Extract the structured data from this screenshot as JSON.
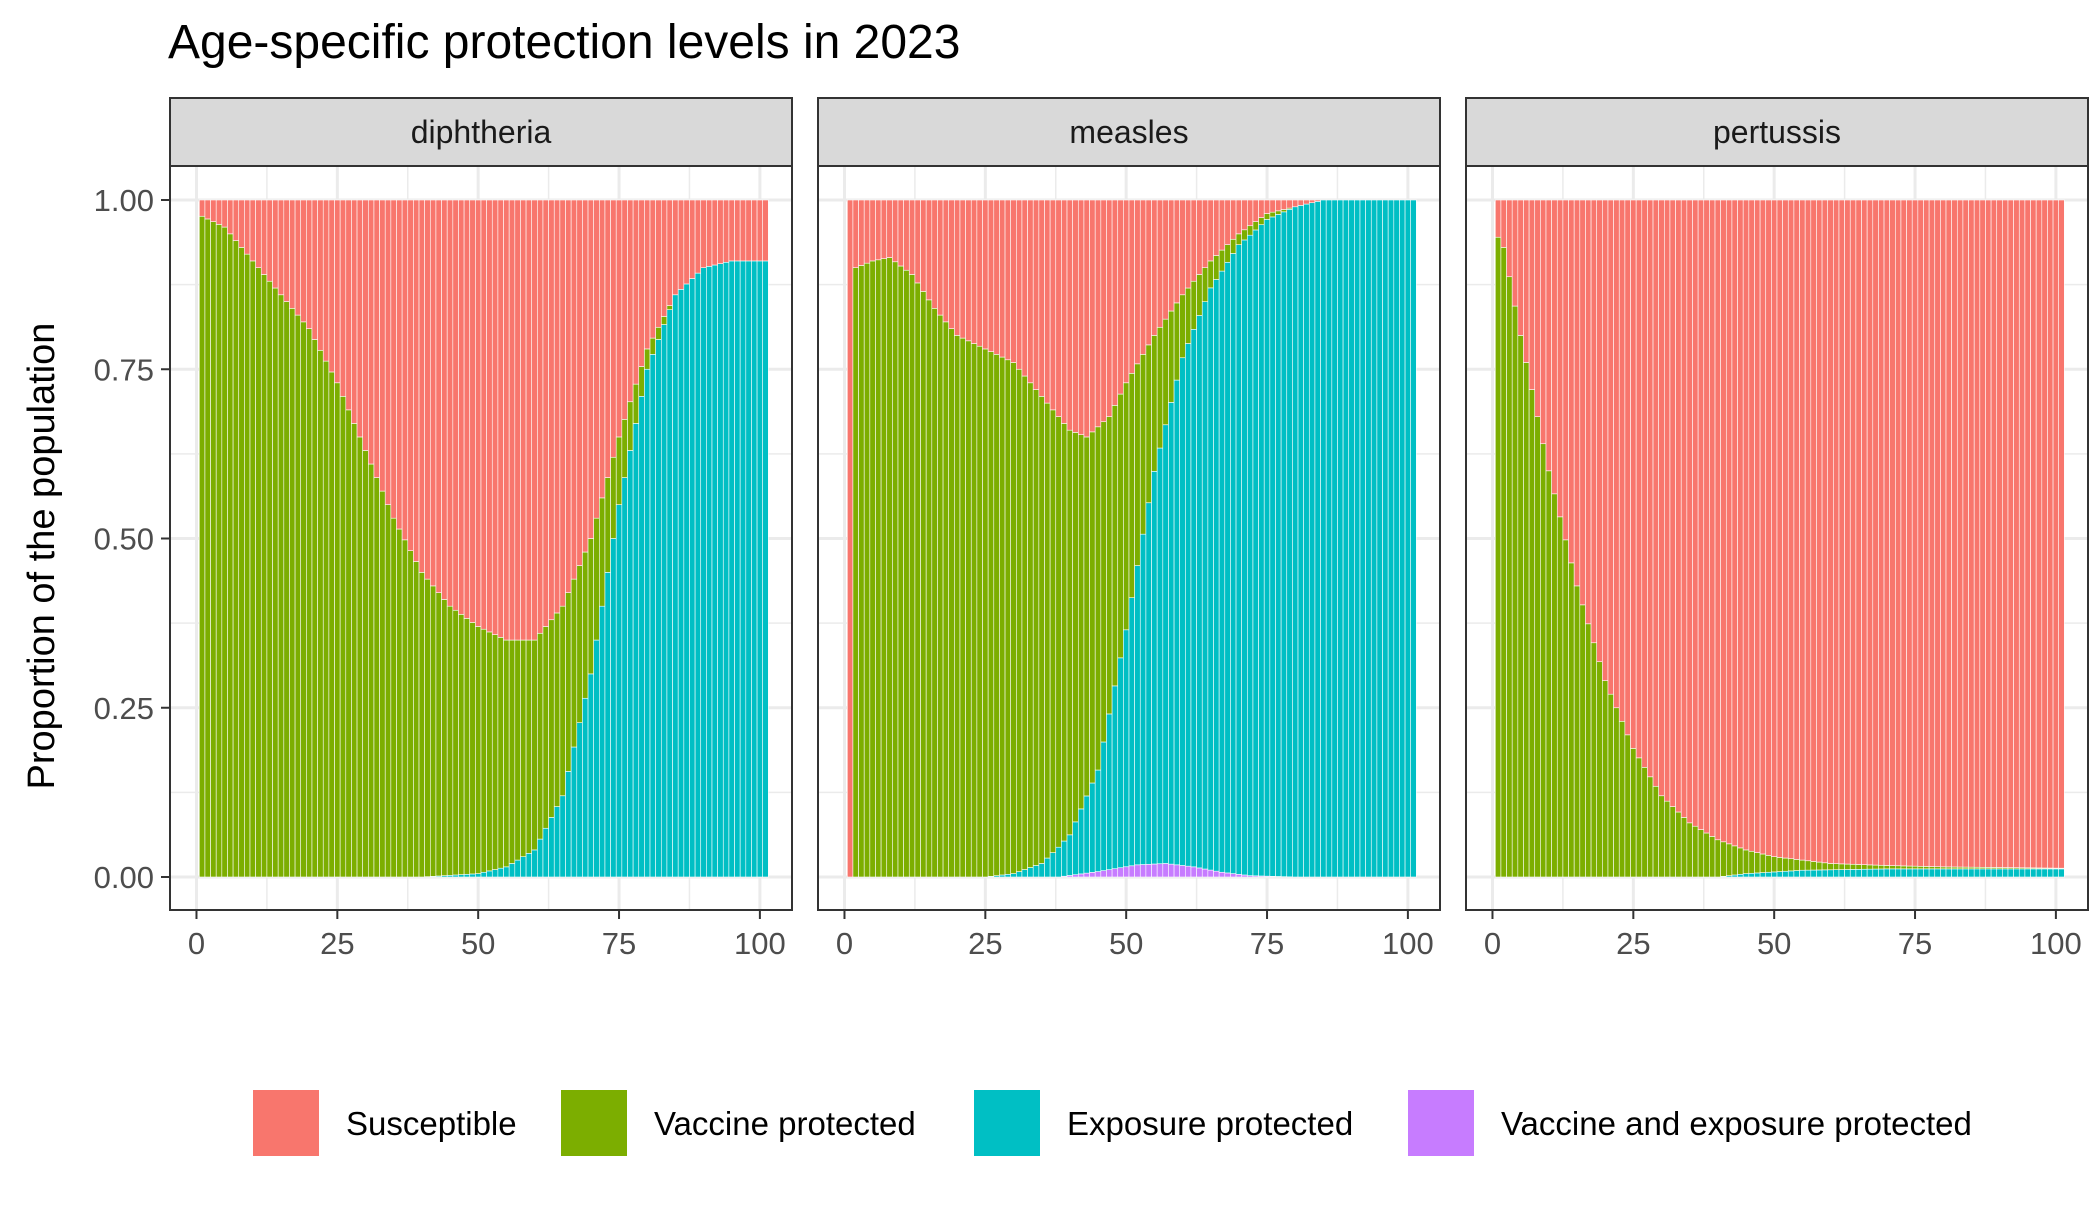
{
  "chart_data": {
    "type": "bar",
    "title": "Age-specific protection levels in 2023",
    "ylabel": "Proportion of the population",
    "xlabel": "",
    "ylim": [
      0,
      1
    ],
    "xlim": [
      0,
      101
    ],
    "x_ticks": [
      "0",
      "25",
      "50",
      "75",
      "100"
    ],
    "y_ticks": [
      "0.00",
      "0.25",
      "0.50",
      "0.75",
      "1.00"
    ],
    "legend_position": "bottom",
    "legend": [
      {
        "label": "Susceptible",
        "color": "#F8766D"
      },
      {
        "label": "Vaccine protected",
        "color": "#7CAE00"
      },
      {
        "label": "Exposure protected",
        "color": "#00BFC4"
      },
      {
        "label": "Vaccine and exposure protected",
        "color": "#C77CFF"
      }
    ],
    "stack_order": [
      "Susceptible",
      "Vaccine protected",
      "Exposure protected",
      "Vaccine and exposure protected"
    ],
    "ages": "1-101",
    "panels": [
      {
        "name": "diphtheria",
        "exposure": [
          [
            0,
            0
          ],
          [
            40,
            0
          ],
          [
            50,
            0.005
          ],
          [
            55,
            0.015
          ],
          [
            60,
            0.04
          ],
          [
            65,
            0.12
          ],
          [
            70,
            0.3
          ],
          [
            75,
            0.55
          ],
          [
            80,
            0.75
          ],
          [
            85,
            0.86
          ],
          [
            90,
            0.9
          ],
          [
            95,
            0.91
          ],
          [
            101,
            0.91
          ]
        ],
        "total_protected": [
          [
            0,
            0.98
          ],
          [
            5,
            0.96
          ],
          [
            10,
            0.91
          ],
          [
            15,
            0.86
          ],
          [
            20,
            0.81
          ],
          [
            25,
            0.73
          ],
          [
            30,
            0.63
          ],
          [
            35,
            0.53
          ],
          [
            40,
            0.45
          ],
          [
            45,
            0.4
          ],
          [
            50,
            0.37
          ],
          [
            55,
            0.35
          ],
          [
            60,
            0.35
          ],
          [
            65,
            0.4
          ],
          [
            70,
            0.5
          ],
          [
            75,
            0.65
          ],
          [
            80,
            0.78
          ],
          [
            85,
            0.86
          ],
          [
            90,
            0.9
          ],
          [
            95,
            0.91
          ],
          [
            101,
            0.91
          ]
        ],
        "both": [
          [
            0,
            0
          ],
          [
            101,
            0
          ]
        ]
      },
      {
        "name": "measles",
        "exposure": [
          [
            0,
            0
          ],
          [
            25,
            0
          ],
          [
            30,
            0.005
          ],
          [
            35,
            0.02
          ],
          [
            40,
            0.06
          ],
          [
            45,
            0.15
          ],
          [
            50,
            0.35
          ],
          [
            55,
            0.58
          ],
          [
            60,
            0.75
          ],
          [
            65,
            0.86
          ],
          [
            70,
            0.93
          ],
          [
            75,
            0.97
          ],
          [
            80,
            0.99
          ],
          [
            85,
            1.0
          ],
          [
            101,
            1.0
          ]
        ],
        "total_protected": [
          [
            0,
            0.0
          ],
          [
            1,
            0.0
          ],
          [
            2,
            0.9
          ],
          [
            5,
            0.91
          ],
          [
            8,
            0.915
          ],
          [
            12,
            0.89
          ],
          [
            16,
            0.84
          ],
          [
            20,
            0.8
          ],
          [
            25,
            0.78
          ],
          [
            30,
            0.76
          ],
          [
            35,
            0.71
          ],
          [
            40,
            0.66
          ],
          [
            43,
            0.65
          ],
          [
            47,
            0.68
          ],
          [
            50,
            0.73
          ],
          [
            55,
            0.8
          ],
          [
            60,
            0.86
          ],
          [
            65,
            0.91
          ],
          [
            70,
            0.95
          ],
          [
            75,
            0.98
          ],
          [
            80,
            0.99
          ],
          [
            85,
            1.0
          ],
          [
            101,
            1.0
          ]
        ],
        "both": [
          [
            0,
            0
          ],
          [
            38,
            0
          ],
          [
            45,
            0.008
          ],
          [
            52,
            0.018
          ],
          [
            57,
            0.02
          ],
          [
            62,
            0.015
          ],
          [
            67,
            0.007
          ],
          [
            72,
            0.002
          ],
          [
            80,
            0
          ],
          [
            101,
            0
          ]
        ]
      },
      {
        "name": "pertussis",
        "exposure": [
          [
            0,
            0
          ],
          [
            40,
            0
          ],
          [
            45,
            0.005
          ],
          [
            55,
            0.01
          ],
          [
            70,
            0.012
          ],
          [
            101,
            0.012
          ]
        ],
        "total_protected": [
          [
            0,
            0.96
          ],
          [
            2,
            0.93
          ],
          [
            5,
            0.8
          ],
          [
            10,
            0.6
          ],
          [
            15,
            0.43
          ],
          [
            20,
            0.29
          ],
          [
            25,
            0.19
          ],
          [
            30,
            0.12
          ],
          [
            35,
            0.08
          ],
          [
            40,
            0.055
          ],
          [
            45,
            0.04
          ],
          [
            50,
            0.03
          ],
          [
            60,
            0.02
          ],
          [
            70,
            0.017
          ],
          [
            80,
            0.015
          ],
          [
            101,
            0.013
          ]
        ],
        "both": [
          [
            0,
            0
          ],
          [
            101,
            0
          ]
        ]
      }
    ]
  }
}
